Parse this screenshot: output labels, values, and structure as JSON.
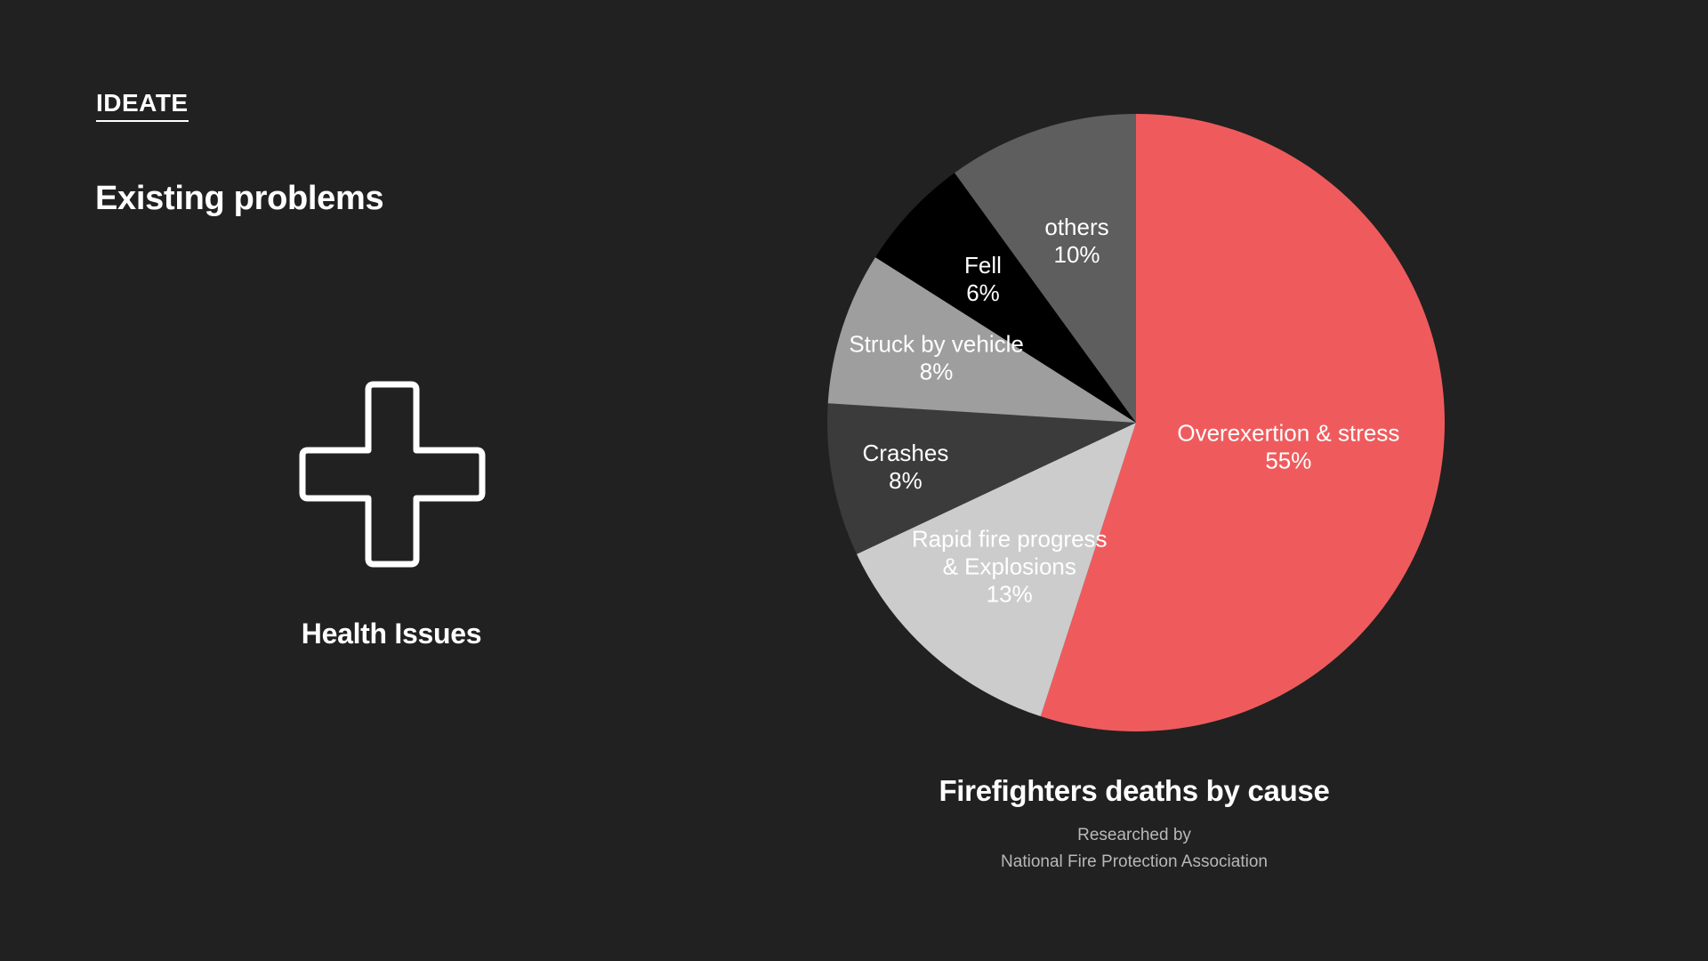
{
  "header": {
    "section_tag": "IDEATE",
    "title": "Existing problems"
  },
  "problem": {
    "icon": "plus-cross-icon",
    "caption": "Health Issues"
  },
  "chart_data": {
    "type": "pie",
    "title": "Firefighters deaths by cause",
    "source_line1": "Researched by",
    "source_line2": "National Fire Protection Association",
    "slices": [
      {
        "label": [
          "Overexertion & stress"
        ],
        "value": 55,
        "value_label": "55%",
        "color": "#ef5b5d"
      },
      {
        "label": [
          "Rapid fire progress",
          "& Explosions"
        ],
        "value": 13,
        "value_label": "13%",
        "color": "#cccccc"
      },
      {
        "label": [
          "Crashes"
        ],
        "value": 8,
        "value_label": "8%",
        "color": "#3b3b3b"
      },
      {
        "label": [
          "Struck by vehicle"
        ],
        "value": 8,
        "value_label": "8%",
        "color": "#9e9e9e"
      },
      {
        "label": [
          "Fell"
        ],
        "value": 6,
        "value_label": "6%",
        "color": "#000000"
      },
      {
        "label": [
          "others"
        ],
        "value": 10,
        "value_label": "10%",
        "color": "#5e5e5e"
      }
    ]
  }
}
